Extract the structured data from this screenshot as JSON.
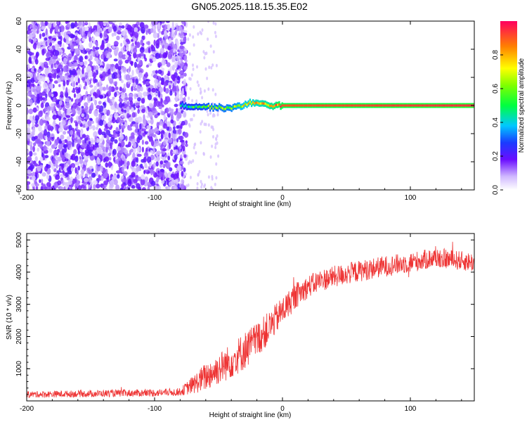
{
  "title": "GN05.2025.118.15.35.E02",
  "chart_data": [
    {
      "type": "heatmap",
      "xlabel": "Height of straight line (km)",
      "ylabel": "Frequency (Hz)",
      "xlim": [
        -200,
        150
      ],
      "ylim": [
        -60,
        60
      ],
      "xticks": [
        -200,
        -100,
        0,
        100
      ],
      "yticks": [
        -60,
        -40,
        -20,
        0,
        20,
        40,
        60
      ],
      "colorbar": {
        "label": "Normalized spectral amplitude",
        "range": [
          0.0,
          1.0
        ],
        "ticks": [
          0.0,
          0.2,
          0.4,
          0.6,
          0.8
        ]
      },
      "signal_band": {
        "center_hz": 0,
        "start_km": -80,
        "segments": [
          {
            "x_km": -80,
            "f_hz": 0,
            "amp": 0.45
          },
          {
            "x_km": -60,
            "f_hz": -1,
            "amp": 0.55
          },
          {
            "x_km": -40,
            "f_hz": -2,
            "amp": 0.6
          },
          {
            "x_km": -25,
            "f_hz": 2,
            "amp": 0.75
          },
          {
            "x_km": -10,
            "f_hz": 0,
            "amp": 0.8
          },
          {
            "x_km": 0,
            "f_hz": 0,
            "amp": 0.9
          },
          {
            "x_km": 150,
            "f_hz": 0,
            "amp": 0.95
          }
        ]
      },
      "noise_region": {
        "x_from_km": -200,
        "x_to_km": -75,
        "amp": 0.15
      }
    },
    {
      "type": "line",
      "xlabel": "Height of straight line (km)",
      "ylabel": "SNR (10 * v/v)",
      "xlim": [
        -200,
        150
      ],
      "ylim": [
        0,
        5200
      ],
      "xticks": [
        -200,
        -100,
        0,
        100
      ],
      "yticks": [
        1000,
        2000,
        3000,
        4000,
        5000
      ],
      "series": [
        {
          "color": "#ee3333",
          "trend": [
            {
              "x": -200,
              "y": 200
            },
            {
              "x": -100,
              "y": 250
            },
            {
              "x": -80,
              "y": 280
            },
            {
              "x": -70,
              "y": 500
            },
            {
              "x": -60,
              "y": 750
            },
            {
              "x": -50,
              "y": 1000
            },
            {
              "x": -40,
              "y": 1250
            },
            {
              "x": -30,
              "y": 1550
            },
            {
              "x": -20,
              "y": 1900
            },
            {
              "x": -10,
              "y": 2300
            },
            {
              "x": 0,
              "y": 2800
            },
            {
              "x": 10,
              "y": 3250
            },
            {
              "x": 20,
              "y": 3550
            },
            {
              "x": 30,
              "y": 3750
            },
            {
              "x": 50,
              "y": 3950
            },
            {
              "x": 75,
              "y": 4150
            },
            {
              "x": 100,
              "y": 4300
            },
            {
              "x": 120,
              "y": 4450
            },
            {
              "x": 150,
              "y": 4300
            }
          ],
          "noise_amplitude": [
            {
              "x": -200,
              "a": 100
            },
            {
              "x": -80,
              "a": 120
            },
            {
              "x": -60,
              "a": 450
            },
            {
              "x": -30,
              "a": 600
            },
            {
              "x": -10,
              "a": 500
            },
            {
              "x": 20,
              "a": 350
            },
            {
              "x": 150,
              "a": 300
            }
          ]
        }
      ]
    }
  ]
}
